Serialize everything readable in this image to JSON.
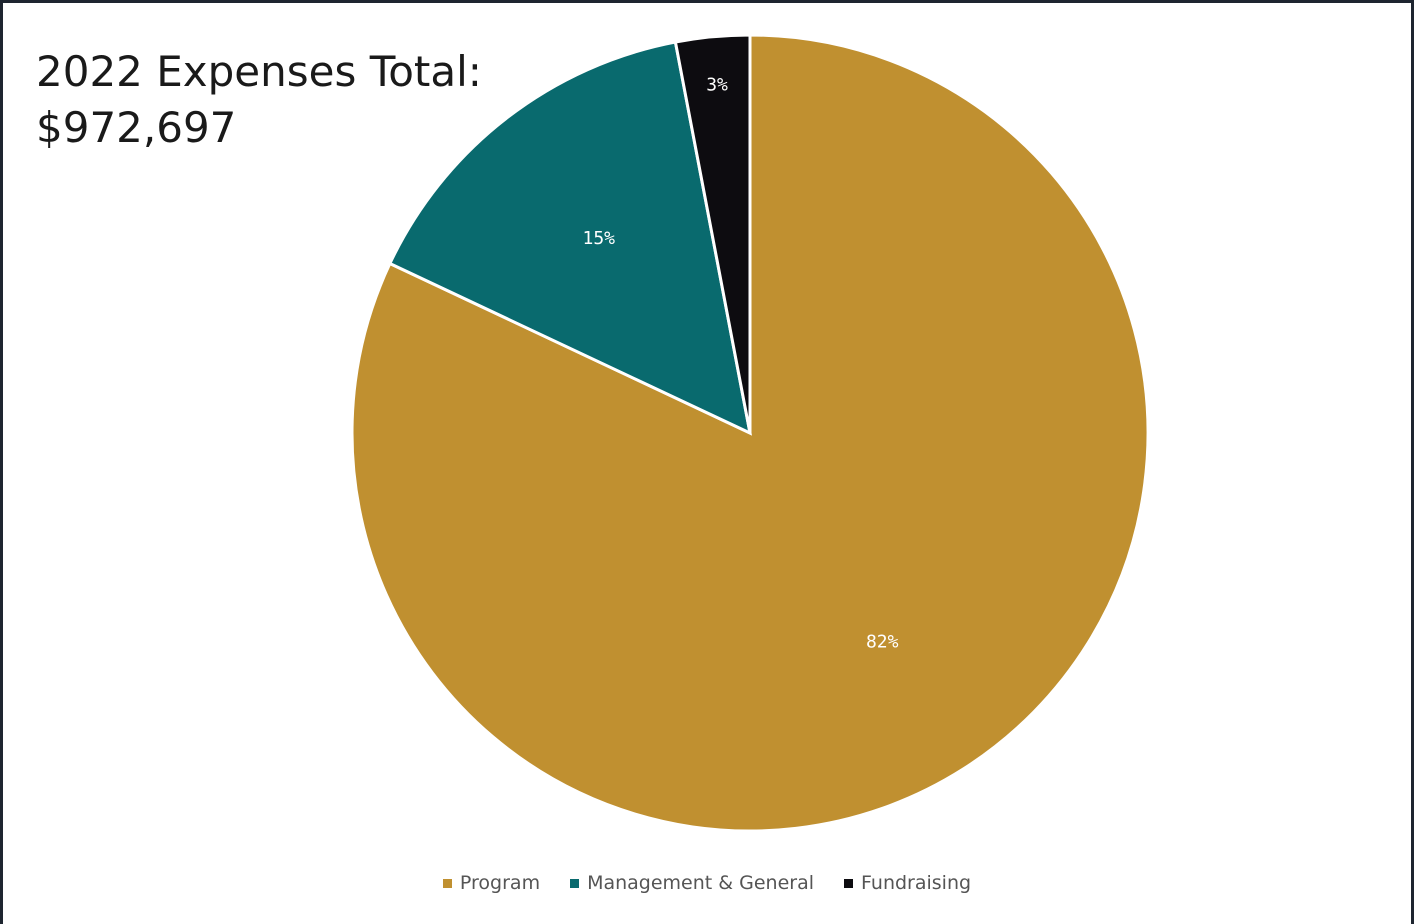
{
  "header": {
    "title_line1": "2022 Expenses Total:",
    "title_line2": "$972,697"
  },
  "chart_data": {
    "type": "pie",
    "title": "2022 Expenses Total: $972,697",
    "start_angle": "top, clockwise",
    "slices": [
      {
        "name": "Program",
        "value": 82,
        "label": "82%",
        "color": "#c09030"
      },
      {
        "name": "Management & General",
        "value": 15,
        "label": "15%",
        "color": "#096a6e"
      },
      {
        "name": "Fundraising",
        "value": 3,
        "label": "3%",
        "color": "#0d0c10"
      }
    ],
    "legend_position": "bottom"
  }
}
